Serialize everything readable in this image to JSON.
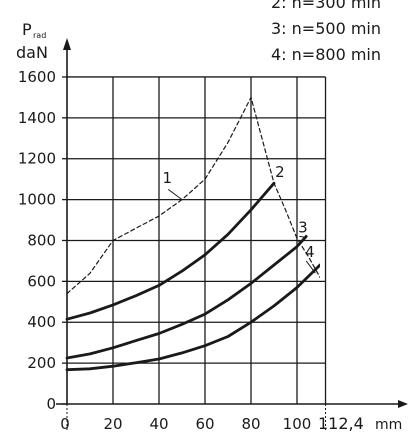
{
  "chart_data": {
    "type": "line",
    "ylabel_main": "P",
    "ylabel_sub": "rad",
    "ylabel_unit": "daN",
    "xlabel_unit": "mm",
    "xlim": [
      0,
      112.4
    ],
    "ylim": [
      0,
      1600
    ],
    "x_ticks": [
      "0",
      "20",
      "40",
      "60",
      "80",
      "100"
    ],
    "x_end_label": "112,4",
    "y_ticks": [
      "0",
      "200",
      "400",
      "600",
      "800",
      "1000",
      "1200",
      "1400",
      "1600"
    ],
    "grid": true,
    "legend": [
      "2: n=300 min",
      "3: n=500 min",
      "4: n=800 min"
    ],
    "series": [
      {
        "name": "1",
        "style": "dashed",
        "x": [
          0,
          10,
          20,
          30,
          40,
          50,
          60,
          70,
          80,
          85,
          90,
          95,
          100,
          105,
          110
        ],
        "y": [
          540,
          640,
          800,
          860,
          920,
          1000,
          1100,
          1280,
          1500,
          1290,
          1080,
          950,
          810,
          720,
          620
        ]
      },
      {
        "name": "2",
        "style": "solid",
        "x": [
          0,
          10,
          20,
          30,
          40,
          50,
          60,
          70,
          80,
          90
        ],
        "y": [
          415,
          445,
          485,
          530,
          580,
          650,
          730,
          830,
          950,
          1080
        ]
      },
      {
        "name": "3",
        "style": "solid",
        "x": [
          0,
          10,
          20,
          30,
          40,
          50,
          60,
          70,
          80,
          90,
          100,
          104
        ],
        "y": [
          225,
          245,
          275,
          310,
          345,
          390,
          440,
          510,
          590,
          680,
          770,
          820
        ]
      },
      {
        "name": "4",
        "style": "solid",
        "x": [
          0,
          10,
          20,
          30,
          40,
          50,
          60,
          70,
          80,
          90,
          100,
          110
        ],
        "y": [
          168,
          172,
          185,
          202,
          220,
          250,
          285,
          330,
          400,
          480,
          570,
          680
        ]
      }
    ],
    "curve_labels": [
      "1",
      "2",
      "3",
      "4"
    ]
  }
}
